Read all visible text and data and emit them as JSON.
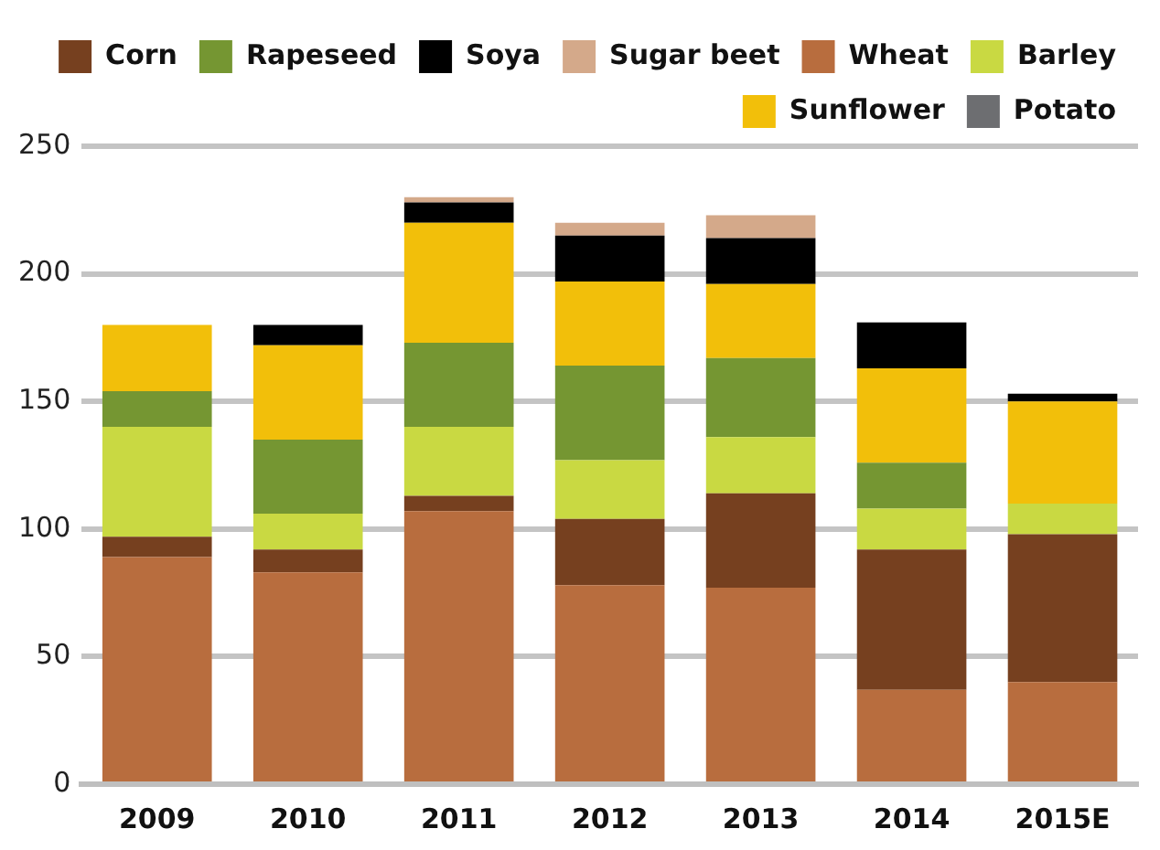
{
  "chart_data": {
    "type": "bar",
    "stacked": true,
    "categories": [
      "2009",
      "2010",
      "2011",
      "2012",
      "2013",
      "2014",
      "2015E"
    ],
    "series": [
      {
        "name": "Wheat",
        "color": "#b86d3e",
        "values": [
          89,
          83,
          107,
          78,
          77,
          37,
          40
        ]
      },
      {
        "name": "Corn",
        "color": "#76401f",
        "values": [
          8,
          9,
          6,
          26,
          37,
          55,
          58
        ]
      },
      {
        "name": "Barley",
        "color": "#c9d942",
        "values": [
          43,
          14,
          27,
          23,
          22,
          16,
          12
        ]
      },
      {
        "name": "Rapeseed",
        "color": "#759632",
        "values": [
          14,
          29,
          33,
          37,
          31,
          18,
          0
        ]
      },
      {
        "name": "Sunflower",
        "color": "#f2bf0a",
        "values": [
          26,
          37,
          47,
          33,
          29,
          37,
          40
        ]
      },
      {
        "name": "Soya",
        "color": "#000000",
        "values": [
          0,
          8,
          8,
          18,
          18,
          18,
          3
        ]
      },
      {
        "name": "Potato",
        "color": "#6d6e71",
        "values": [
          0,
          0,
          0,
          0,
          0,
          0,
          0
        ]
      },
      {
        "name": "Sugar beet",
        "color": "#d4a98a",
        "values": [
          0,
          0,
          2,
          5,
          9,
          0,
          0
        ]
      }
    ],
    "ylim": [
      0,
      250
    ],
    "yticks": [
      0,
      50,
      100,
      150,
      200,
      250
    ],
    "grid": "y",
    "legend": "top"
  }
}
